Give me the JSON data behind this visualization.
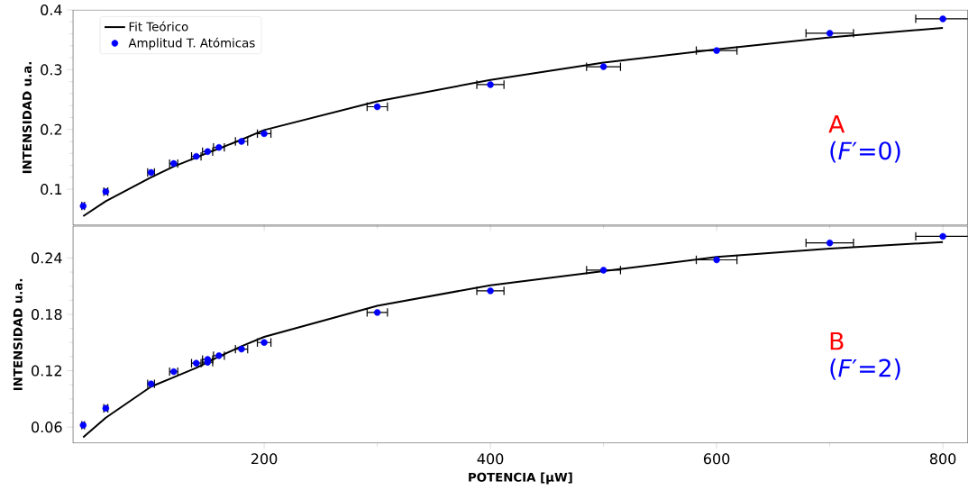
{
  "chart_data": [
    {
      "type": "scatter",
      "ylabel": "INTENSIDAD u.a.",
      "xlim": [
        31,
        822
      ],
      "ylim": [
        0.04,
        0.4
      ],
      "xticks": [
        200,
        400,
        600,
        800
      ],
      "yticks": [
        0.1,
        0.2,
        0.3,
        0.4
      ],
      "tick_labels": "y",
      "legend": "top left",
      "grid": false,
      "annotations": [
        "A",
        "(*F*′=0)"
      ],
      "series": [
        {
          "name": "Fit Teórico",
          "type": "line",
          "color": "#000000",
          "marker": "none",
          "line_style": "solid",
          "x": [
            40,
            60,
            100,
            120,
            140,
            150,
            160,
            180,
            200,
            300,
            400,
            500,
            600,
            700,
            800
          ],
          "values": [
            0.055,
            0.08,
            0.12,
            0.138,
            0.153,
            0.161,
            0.168,
            0.183,
            0.199,
            0.247,
            0.283,
            0.312,
            0.334,
            0.354,
            0.37
          ]
        },
        {
          "name": "Amplitud T. Atómicas",
          "color": "#0000ff",
          "marker": "circle",
          "x": [
            40,
            60,
            100,
            120,
            140,
            150,
            160,
            180,
            200,
            300,
            400,
            500,
            600,
            700,
            800
          ],
          "values": [
            0.072,
            0.096,
            0.128,
            0.143,
            0.155,
            0.163,
            0.17,
            0.18,
            0.193,
            0.238,
            0.275,
            0.305,
            0.332,
            0.361,
            0.385
          ],
          "xerrors": [
            1.2,
            1.8,
            3,
            3.6,
            4.2,
            4.5,
            4.8,
            5.4,
            6,
            9,
            12,
            15,
            18,
            21,
            24
          ]
        }
      ]
    },
    {
      "type": "scatter",
      "xlabel": "POTENCIA [μW]",
      "ylabel": "INTENSIDAD u.a.",
      "xlim": [
        31,
        822
      ],
      "ylim": [
        0.043,
        0.274
      ],
      "xticks": [
        200,
        400,
        600,
        800
      ],
      "yticks": [
        0.06,
        0.12,
        0.18,
        0.24
      ],
      "grid": false,
      "annotations": [
        "B",
        "(*F*′=2)"
      ],
      "series": [
        {
          "type": "line",
          "color": "#000000",
          "marker": "none",
          "line_style": "solid",
          "x": [
            40,
            60,
            100,
            120,
            140,
            150,
            160,
            180,
            200,
            300,
            400,
            500,
            600,
            700,
            800
          ],
          "values": [
            0.049,
            0.07,
            0.103,
            0.113,
            0.123,
            0.129,
            0.135,
            0.146,
            0.156,
            0.189,
            0.211,
            0.226,
            0.241,
            0.25,
            0.257
          ]
        },
        {
          "color": "#0000ff",
          "marker": "circle",
          "x": [
            40,
            60,
            100,
            120,
            140,
            150,
            150,
            160,
            180,
            200,
            300,
            400,
            500,
            600,
            700,
            800
          ],
          "values": [
            0.062,
            0.08,
            0.106,
            0.119,
            0.128,
            0.132,
            0.129,
            0.136,
            0.143,
            0.15,
            0.182,
            0.205,
            0.227,
            0.238,
            0.256,
            0.263
          ],
          "xerrors": [
            1.2,
            1.8,
            3,
            3.6,
            4.2,
            4.5,
            4.5,
            4.8,
            5.4,
            6,
            9,
            12,
            15,
            18,
            21,
            24
          ]
        }
      ]
    }
  ]
}
